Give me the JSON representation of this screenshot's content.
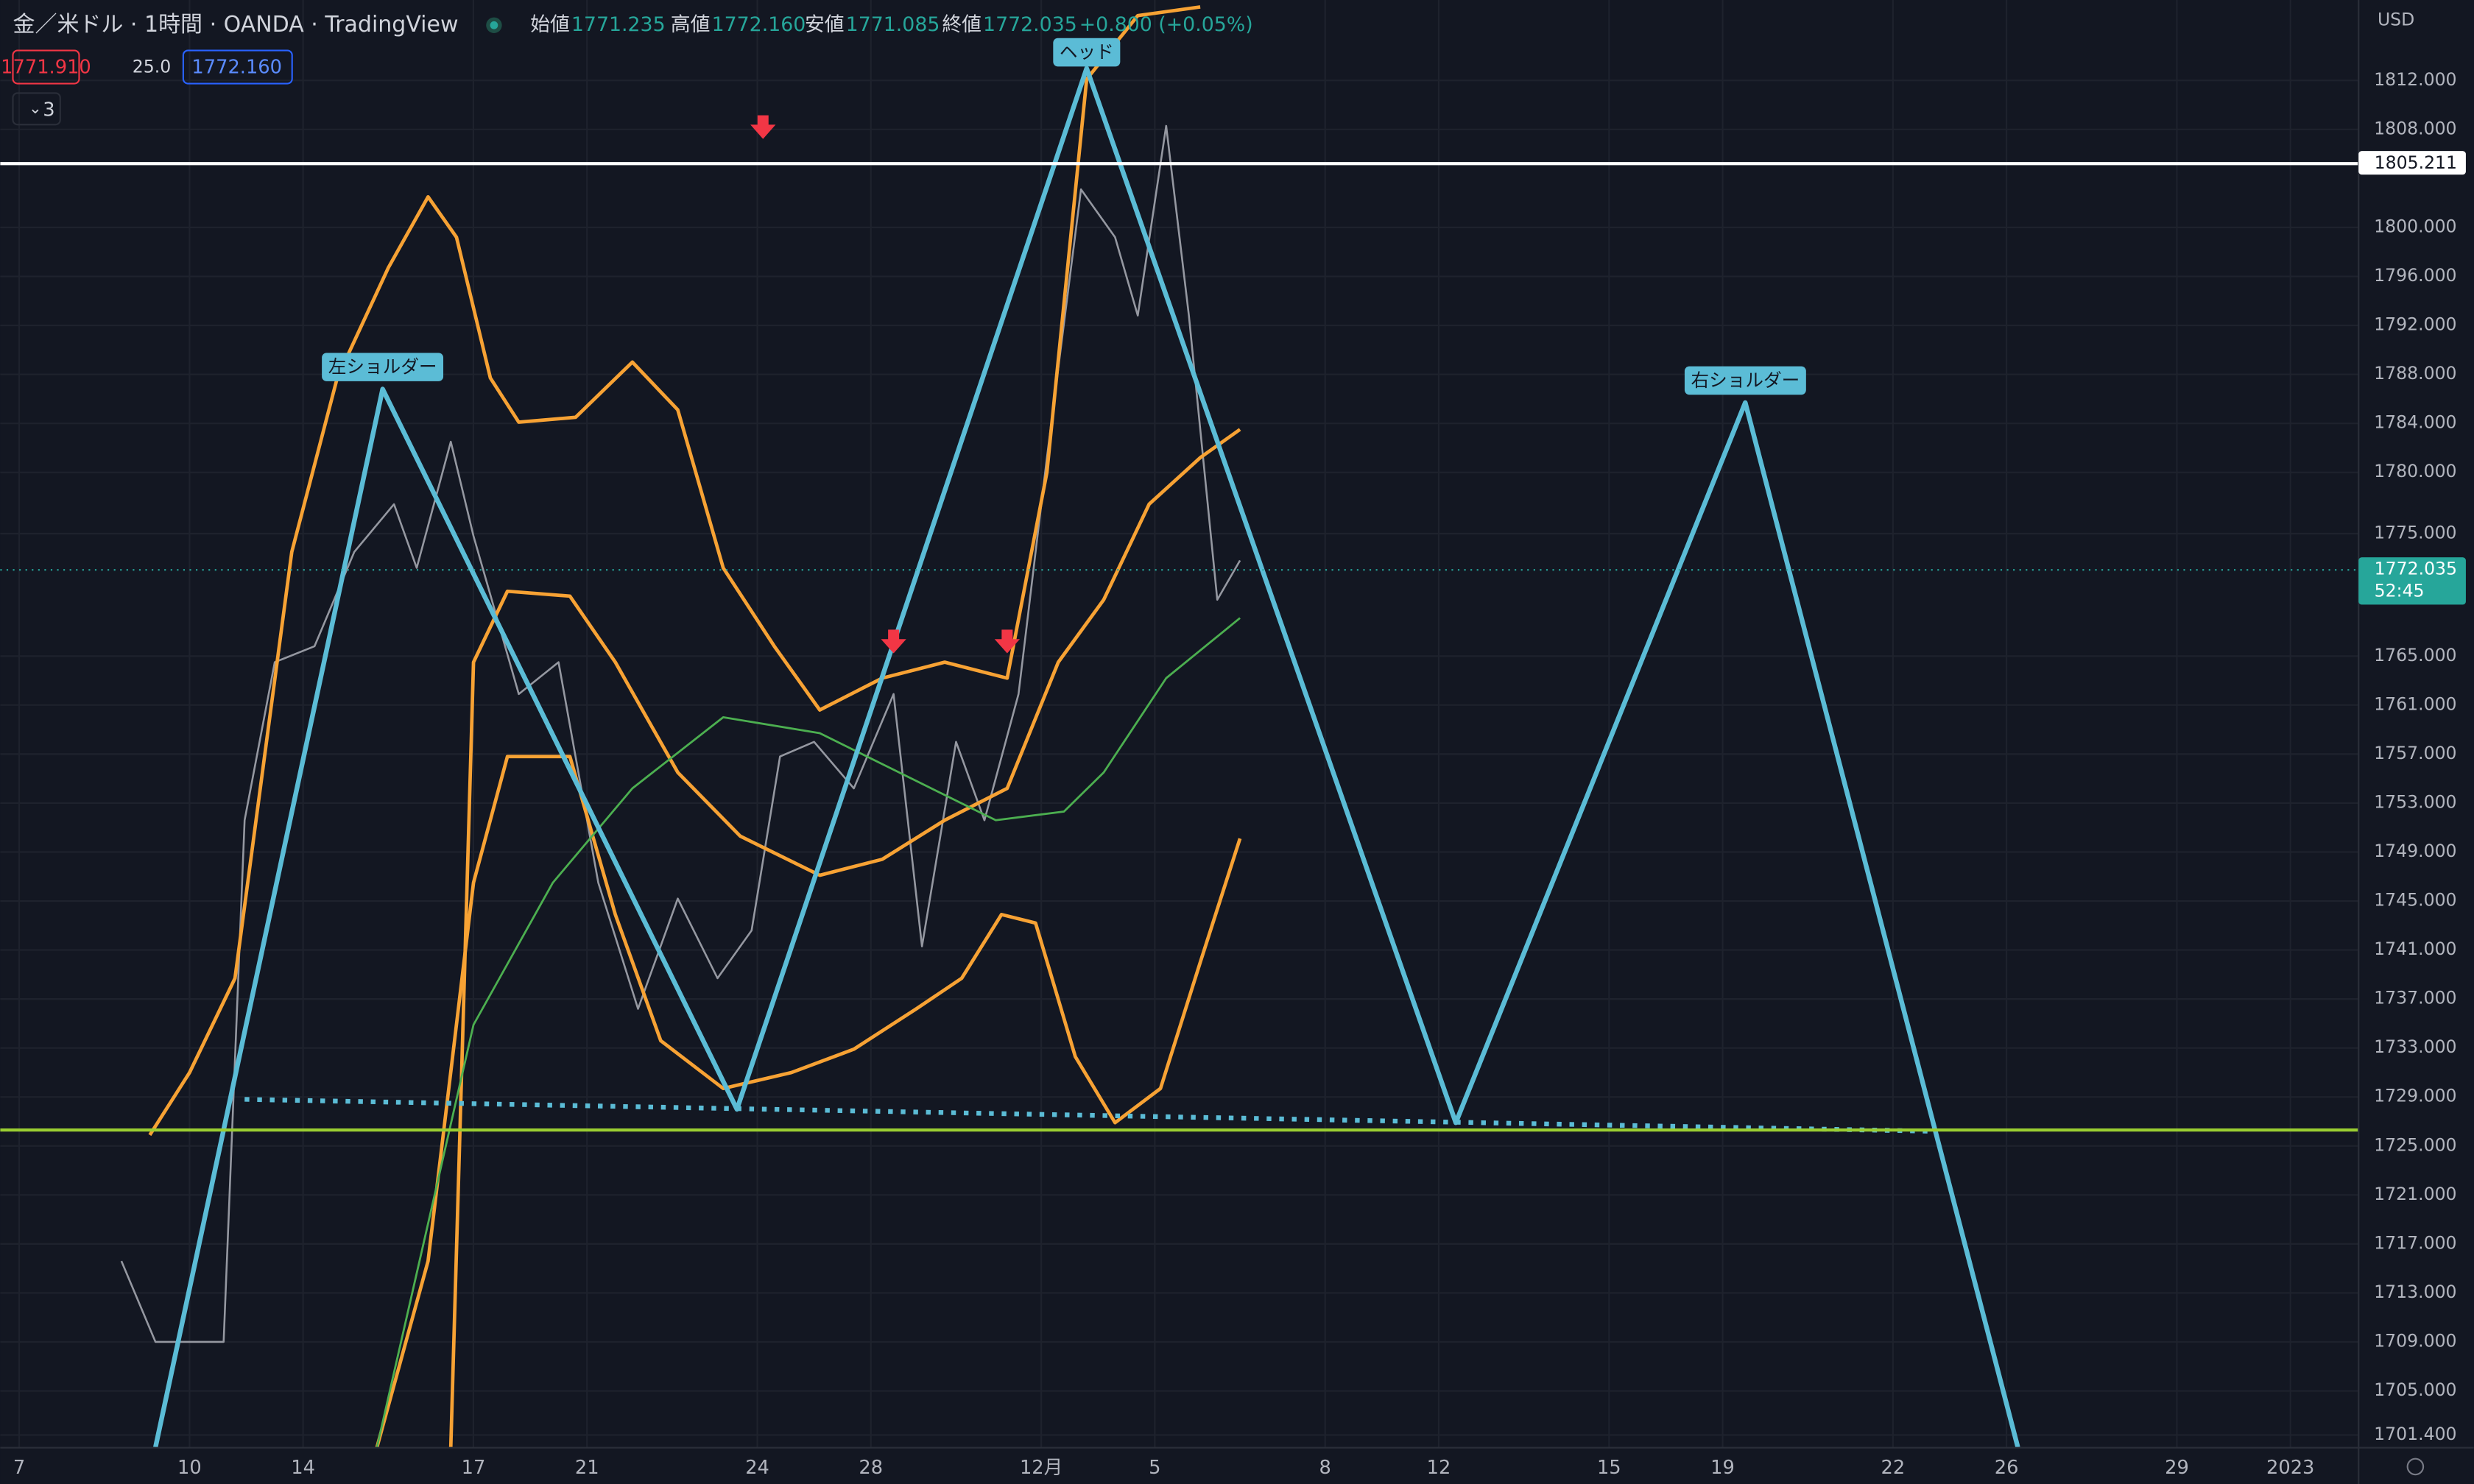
{
  "header": {
    "title": "金／米ドル · 1時間 · OANDA · TradingView",
    "ohlc": [
      {
        "label": "始値",
        "value": "1771.235"
      },
      {
        "label": "高値",
        "value": "1772.160"
      },
      {
        "label": "安値",
        "value": "1771.085"
      },
      {
        "label": "終値",
        "value": "1772.035"
      }
    ],
    "change": "+0.800 (+0.05%)",
    "bid": "1771.910",
    "spread": "25.0",
    "ask": "1772.160",
    "indicators": "3",
    "currency": "USD",
    "countdown": "52:45"
  },
  "chart_data": {
    "type": "line",
    "xlim": [
      -0.333,
      41.2
    ],
    "ylim": [
      1700.36,
      1818.57
    ],
    "xticks": [
      {
        "value": 0,
        "label": "7"
      },
      {
        "value": 3,
        "label": "10"
      },
      {
        "value": 5,
        "label": "14"
      },
      {
        "value": 8,
        "label": "17"
      },
      {
        "value": 10,
        "label": "21"
      },
      {
        "value": 13,
        "label": "24"
      },
      {
        "value": 15,
        "label": "28"
      },
      {
        "value": 18,
        "label": "12月"
      },
      {
        "value": 20,
        "label": "5"
      },
      {
        "value": 23,
        "label": "8"
      },
      {
        "value": 25,
        "label": "12"
      },
      {
        "value": 28,
        "label": "15"
      },
      {
        "value": 30,
        "label": "19"
      },
      {
        "value": 33,
        "label": "22"
      },
      {
        "value": 35,
        "label": "26"
      },
      {
        "value": 38,
        "label": "29"
      },
      {
        "value": 40,
        "label": "2023"
      }
    ],
    "yticks": [
      {
        "value": 1701.4,
        "label": "1701.400"
      },
      {
        "value": 1705,
        "label": "1705.000"
      },
      {
        "value": 1709,
        "label": "1709.000"
      },
      {
        "value": 1713,
        "label": "1713.000"
      },
      {
        "value": 1717,
        "label": "1717.000"
      },
      {
        "value": 1721,
        "label": "1721.000"
      },
      {
        "value": 1725,
        "label": "1725.000"
      },
      {
        "value": 1729,
        "label": "1729.000"
      },
      {
        "value": 1733,
        "label": "1733.000"
      },
      {
        "value": 1737,
        "label": "1737.000"
      },
      {
        "value": 1741,
        "label": "1741.000"
      },
      {
        "value": 1745,
        "label": "1745.000"
      },
      {
        "value": 1749,
        "label": "1749.000"
      },
      {
        "value": 1753,
        "label": "1753.000"
      },
      {
        "value": 1757,
        "label": "1757.000"
      },
      {
        "value": 1761,
        "label": "1761.000"
      },
      {
        "value": 1765,
        "label": "1765.000"
      },
      {
        "value": 1775,
        "label": "1775.000"
      },
      {
        "value": 1780,
        "label": "1780.000"
      },
      {
        "value": 1784,
        "label": "1784.000"
      },
      {
        "value": 1788,
        "label": "1788.000"
      },
      {
        "value": 1792,
        "label": "1792.000"
      },
      {
        "value": 1796,
        "label": "1796.000"
      },
      {
        "value": 1800,
        "label": "1800.000"
      },
      {
        "value": 1808,
        "label": "1808.000"
      },
      {
        "value": 1812,
        "label": "1812.000"
      }
    ],
    "grid": true,
    "series": [
      {
        "color": "#9598a1",
        "width": 1.2,
        "x": [
          1.8,
          2.4,
          3.6,
          3.97,
          4.5,
          5.2,
          5.9,
          6.6,
          7.0,
          7.6,
          8.0,
          8.8,
          9.5,
          10.2,
          10.9,
          11.6,
          12.3,
          12.9,
          13.4,
          14.0,
          14.7,
          15.4,
          15.9,
          16.5,
          17.0,
          17.6,
          18.1,
          18.7,
          19.3,
          19.7,
          20.2,
          20.6,
          21.1,
          21.5
        ],
        "values": [
          1715.6,
          1709,
          1709,
          1751.6,
          1764.5,
          1765.8,
          1773.5,
          1777.4,
          1772.2,
          1782.5,
          1774.8,
          1761.9,
          1764.5,
          1746.5,
          1736.2,
          1745.2,
          1738.7,
          1742.6,
          1756.8,
          1758,
          1754.2,
          1761.9,
          1741.3,
          1758,
          1751.6,
          1761.9,
          1781.2,
          1803.1,
          1799.2,
          1792.8,
          1808.3,
          1792.8,
          1769.6,
          1772.8
        ]
      },
      {
        "color": "#f7a234",
        "width": 2.2,
        "x": [
          2.3,
          3.0,
          3.8,
          4.8,
          5.6,
          6.5,
          7.2,
          7.7,
          8.3,
          8.8,
          9.8,
          10.8,
          11.6,
          12.4,
          13.3,
          14.1,
          15.2,
          16.3,
          17.4,
          18.1,
          18.8,
          19.7,
          20.8
        ],
        "values": [
          1725.9,
          1731,
          1738.7,
          1773.5,
          1787.7,
          1796.7,
          1802.5,
          1799.2,
          1787.7,
          1784.1,
          1784.5,
          1789,
          1785.1,
          1772.2,
          1765.8,
          1760.6,
          1763.2,
          1764.5,
          1763.2,
          1780,
          1812.1,
          1817.3,
          1818
        ]
      },
      {
        "color": "#f7a234",
        "width": 2.2,
        "x": [
          7.6,
          8.0,
          8.6,
          9.7,
          10.5,
          11.6,
          12.7,
          14.1,
          15.2,
          16.3,
          17.4,
          18.3,
          19.1,
          19.9,
          20.8,
          21.5
        ],
        "values": [
          1700.4,
          1764.5,
          1770.3,
          1769.9,
          1764.5,
          1755.5,
          1750.3,
          1747.1,
          1748.4,
          1751.6,
          1754.2,
          1764.5,
          1769.6,
          1777.4,
          1781.2,
          1783.5
        ]
      },
      {
        "color": "#f7a234",
        "width": 2.2,
        "x": [
          6.3,
          7.2,
          8.0,
          8.6,
          9.7,
          10.5,
          11.3,
          12.4,
          13.6,
          14.7,
          15.8,
          16.6,
          17.3,
          17.9,
          18.6,
          19.3,
          20.1,
          20.8,
          21.5
        ],
        "values": [
          1700.4,
          1715.6,
          1746.5,
          1756.8,
          1756.8,
          1743.9,
          1733.6,
          1729.7,
          1731,
          1732.9,
          1736.2,
          1738.7,
          1743.9,
          1743.2,
          1732.3,
          1726.9,
          1729.7,
          1740,
          1750.1
        ]
      },
      {
        "color": "#4caf50",
        "width": 1.3,
        "x": [
          6.3,
          8.0,
          9.4,
          10.8,
          12.4,
          14.1,
          15.8,
          17.2,
          18.4,
          19.1,
          20.2,
          21.5
        ],
        "values": [
          1700.4,
          1734.9,
          1746.5,
          1754.2,
          1760,
          1758.7,
          1754.8,
          1751.6,
          1752.3,
          1755.5,
          1763.2,
          1768.1
        ]
      },
      {
        "color": "#5bbcd6",
        "width": 3,
        "x": [
          2.4,
          6.4,
          12.64,
          18.8,
          25.3,
          30.4,
          35.2
        ],
        "values": [
          1700.4,
          1786.8,
          1728.0,
          1813.0,
          1726.9,
          1785.7,
          1700.4
        ]
      },
      {
        "color": "#5bbcd6",
        "width": 3,
        "dash": "3 5",
        "x": [
          3.97,
          33.7
        ],
        "values": [
          1728.8,
          1726.2
        ]
      }
    ],
    "hlines": [
      {
        "value": 1805.211,
        "color": "#ffffff",
        "labeled": true
      },
      {
        "value": 1726.3,
        "color": "#9acd32"
      },
      {
        "value": 1772.035,
        "color": "#26a69a",
        "dash": "1 3",
        "labeled": true,
        "countdown": true
      }
    ],
    "markers": [
      {
        "x": 13.1,
        "y": 1808,
        "color": "#f23645"
      },
      {
        "x": 15.4,
        "y": 1766,
        "color": "#f23645"
      },
      {
        "x": 17.4,
        "y": 1766,
        "color": "#f23645"
      }
    ],
    "annotations": [
      {
        "text": "左ショルダー",
        "x": 6.4,
        "y": 1788.6
      },
      {
        "text": "ヘッド",
        "x": 18.8,
        "y": 1814.3
      },
      {
        "text": "右ショルダー",
        "x": 30.4,
        "y": 1787.5
      }
    ]
  }
}
